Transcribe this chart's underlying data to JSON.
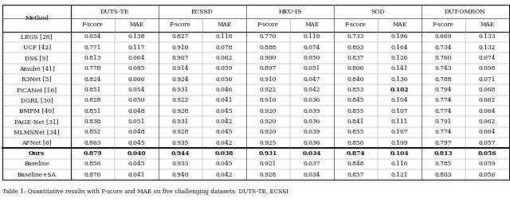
{
  "datasets": [
    "DUTS-TE",
    "ECSSD",
    "HKU-IS",
    "SOD",
    "DUT-OMRON"
  ],
  "methods": [
    "LEGS [28]",
    "UCF [42]",
    "DSS [9]",
    "Amulet [41]",
    "R3Net [5]",
    "PiCANet [16]",
    "DGRL [30]",
    "BMPM [40]",
    "PAGE-Net [31]",
    "MLMSNet [34]",
    "AFNet [6]"
  ],
  "data": [
    [
      0.654,
      0.138,
      0.827,
      0.118,
      0.77,
      0.118,
      0.733,
      0.196,
      0.669,
      0.133
    ],
    [
      0.771,
      0.117,
      0.91,
      0.078,
      0.888,
      0.074,
      0.803,
      0.164,
      0.734,
      0.132
    ],
    [
      0.813,
      0.064,
      0.907,
      0.062,
      0.9,
      0.05,
      0.837,
      0.126,
      0.76,
      0.074
    ],
    [
      0.778,
      0.085,
      0.914,
      0.059,
      0.897,
      0.051,
      0.806,
      0.141,
      0.743,
      0.098
    ],
    [
      0.824,
      0.066,
      0.924,
      0.056,
      0.91,
      0.047,
      0.84,
      0.136,
      0.788,
      0.071
    ],
    [
      0.851,
      0.054,
      0.931,
      0.046,
      0.922,
      0.042,
      0.853,
      0.102,
      0.794,
      0.068
    ],
    [
      0.828,
      0.05,
      0.922,
      0.041,
      0.91,
      0.036,
      0.845,
      0.104,
      0.774,
      0.062
    ],
    [
      0.851,
      0.048,
      0.928,
      0.045,
      0.92,
      0.039,
      0.855,
      0.107,
      0.774,
      0.064
    ],
    [
      0.838,
      0.051,
      0.931,
      0.042,
      0.92,
      0.036,
      0.841,
      0.111,
      0.791,
      0.062
    ],
    [
      0.852,
      0.048,
      0.928,
      0.045,
      0.92,
      0.039,
      0.855,
      0.107,
      0.774,
      0.064
    ],
    [
      0.863,
      0.045,
      0.935,
      0.042,
      0.925,
      0.036,
      0.856,
      0.109,
      0.797,
      0.057
    ]
  ],
  "our_methods": [
    "Ours",
    "Baseline",
    "Baseline+SA"
  ],
  "our_data": [
    [
      0.879,
      0.04,
      0.944,
      0.038,
      0.931,
      0.034,
      0.874,
      0.104,
      0.813,
      0.056
    ],
    [
      0.856,
      0.045,
      0.933,
      0.045,
      0.921,
      0.037,
      0.848,
      0.116,
      0.785,
      0.059
    ],
    [
      0.876,
      0.041,
      0.94,
      0.042,
      0.928,
      0.034,
      0.857,
      0.121,
      0.803,
      0.056
    ]
  ],
  "bold_ours_cols": [
    0,
    1,
    2,
    3,
    4,
    5,
    6,
    8,
    9
  ],
  "bold_pica_col": 7,
  "caption": "Table 1: Quantitative results with F-score and MAE on five challenging datasets: DUTS-TE, ECSSI"
}
